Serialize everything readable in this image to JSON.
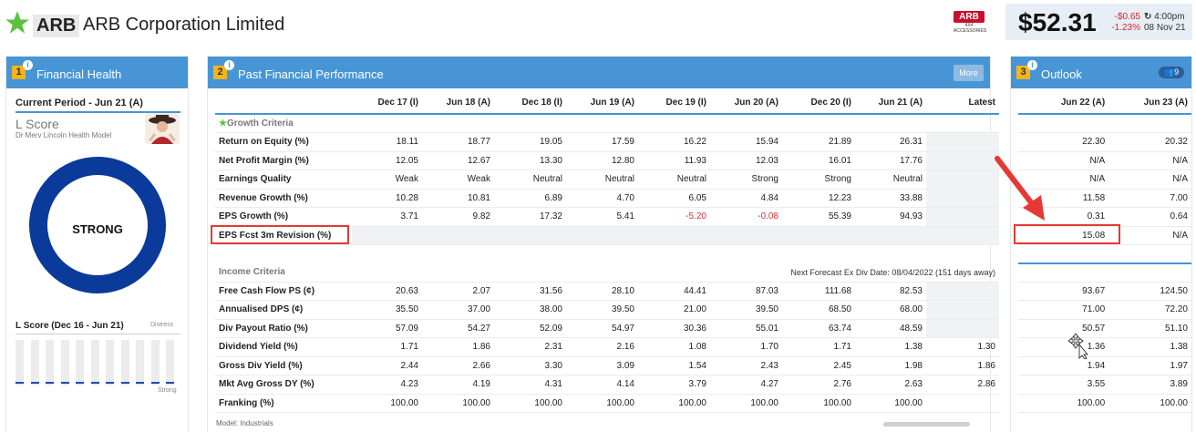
{
  "header": {
    "ticker": "ARB",
    "company": "ARB Corporation Limited",
    "logo_text": "ARB",
    "logo_sub": "4X4 ACCESSORIES",
    "price": "$52.31",
    "change_abs": "-$0.65",
    "change_pct": "-1.23%",
    "time": "4:00pm",
    "date": "08 Nov 21",
    "colors": {
      "accent": "#4795d4",
      "negative": "#d6262b",
      "star": "#5cc13e"
    }
  },
  "health": {
    "num": "1",
    "title": "Financial Health",
    "current_period": "Current Period - Jun 21 (A)",
    "lscore_title": "L Score",
    "lscore_sub": "Dr Merv Lincoln Health Model",
    "rating": "STRONG",
    "history_label": "L Score (Dec 16 - Jun 21)",
    "distress_label": "Distress",
    "strong_label": "Strong",
    "history_levels": [
      0.04,
      0.04,
      0.04,
      0.04,
      0.04,
      0.04,
      0.04,
      0.04,
      0.04,
      0.04,
      0.04
    ]
  },
  "performance": {
    "num": "2",
    "title": "Past Financial Performance",
    "more_label": "More",
    "columns": [
      "Dec 17 (I)",
      "Jun 18 (A)",
      "Dec 18 (I)",
      "Jun 19 (A)",
      "Dec 19 (I)",
      "Jun 20 (A)",
      "Dec 20 (I)",
      "Jun 21 (A)",
      "Latest"
    ],
    "growth_title": "Growth Criteria",
    "growth_rows": [
      {
        "label": "Return on Equity (%)",
        "values": [
          "18.11",
          "18.77",
          "19.05",
          "17.59",
          "16.22",
          "15.94",
          "21.89",
          "26.31",
          ""
        ]
      },
      {
        "label": "Net Profit Margin (%)",
        "values": [
          "12.05",
          "12.67",
          "13.30",
          "12.80",
          "11.93",
          "12.03",
          "16.01",
          "17.76",
          ""
        ]
      },
      {
        "label": "Earnings Quality",
        "values": [
          "Weak",
          "Weak",
          "Neutral",
          "Neutral",
          "Neutral",
          "Strong",
          "Strong",
          "Neutral",
          ""
        ]
      },
      {
        "label": "Revenue Growth (%)",
        "values": [
          "10.28",
          "10.81",
          "6.89",
          "4.70",
          "6.05",
          "4.84",
          "12.23",
          "33.88",
          ""
        ]
      },
      {
        "label": "EPS Growth (%)",
        "values": [
          "3.71",
          "9.82",
          "17.32",
          "5.41",
          "-5.20",
          "-0.08",
          "55.39",
          "94.93",
          ""
        ]
      },
      {
        "label": "EPS Fcst 3m Revision (%)",
        "values": [
          "",
          "",
          "",
          "",
          "",
          "",
          "",
          "",
          ""
        ]
      }
    ],
    "income_title": "Income Criteria",
    "forecast_note": "Next Forecast Ex Div Date: 08/04/2022 (151 days away)",
    "income_rows": [
      {
        "label": "Free Cash Flow PS (¢)",
        "values": [
          "20.63",
          "2.07",
          "31.56",
          "28.10",
          "44.41",
          "87.03",
          "111.68",
          "82.53",
          ""
        ]
      },
      {
        "label": "Annualised DPS (¢)",
        "values": [
          "35.50",
          "37.00",
          "38.00",
          "39.50",
          "21.00",
          "39.50",
          "68.50",
          "68.00",
          ""
        ]
      },
      {
        "label": "Div Payout Ratio (%)",
        "values": [
          "57.09",
          "54.27",
          "52.09",
          "54.97",
          "30.36",
          "55.01",
          "63.74",
          "48.59",
          ""
        ]
      },
      {
        "label": "Dividend Yield (%)",
        "values": [
          "1.71",
          "1.86",
          "2.31",
          "2.16",
          "1.08",
          "1.70",
          "1.71",
          "1.38",
          "1.30"
        ]
      },
      {
        "label": "Gross Div Yield (%)",
        "values": [
          "2.44",
          "2.66",
          "3.30",
          "3.09",
          "1.54",
          "2.43",
          "2.45",
          "1.98",
          "1.86"
        ]
      },
      {
        "label": "Mkt Avg Gross DY (%)",
        "values": [
          "4.23",
          "4.19",
          "4.31",
          "4.14",
          "3.79",
          "4.27",
          "2.76",
          "2.63",
          "2.86"
        ]
      },
      {
        "label": "Franking (%)",
        "values": [
          "100.00",
          "100.00",
          "100.00",
          "100.00",
          "100.00",
          "100.00",
          "100.00",
          "100.00",
          ""
        ]
      }
    ],
    "model_label": "Model: Industrials"
  },
  "outlook": {
    "num": "3",
    "title": "Outlook",
    "analyst_count": "9",
    "columns": [
      "Jun 22 (A)",
      "Jun 23 (A)"
    ],
    "growth_rows": [
      [
        "22.30",
        "20.32"
      ],
      [
        "N/A",
        "N/A"
      ],
      [
        "N/A",
        "N/A"
      ],
      [
        "11.58",
        "7.00"
      ],
      [
        "0.31",
        "0.64"
      ],
      [
        "15.08",
        "N/A"
      ]
    ],
    "income_rows": [
      [
        "93.67",
        "124.50"
      ],
      [
        "71.00",
        "72.20"
      ],
      [
        "50.57",
        "51.10"
      ],
      [
        "1.36",
        "1.38"
      ],
      [
        "1.94",
        "1.97"
      ],
      [
        "3.55",
        "3.89"
      ],
      [
        "100.00",
        "100.00"
      ]
    ]
  }
}
